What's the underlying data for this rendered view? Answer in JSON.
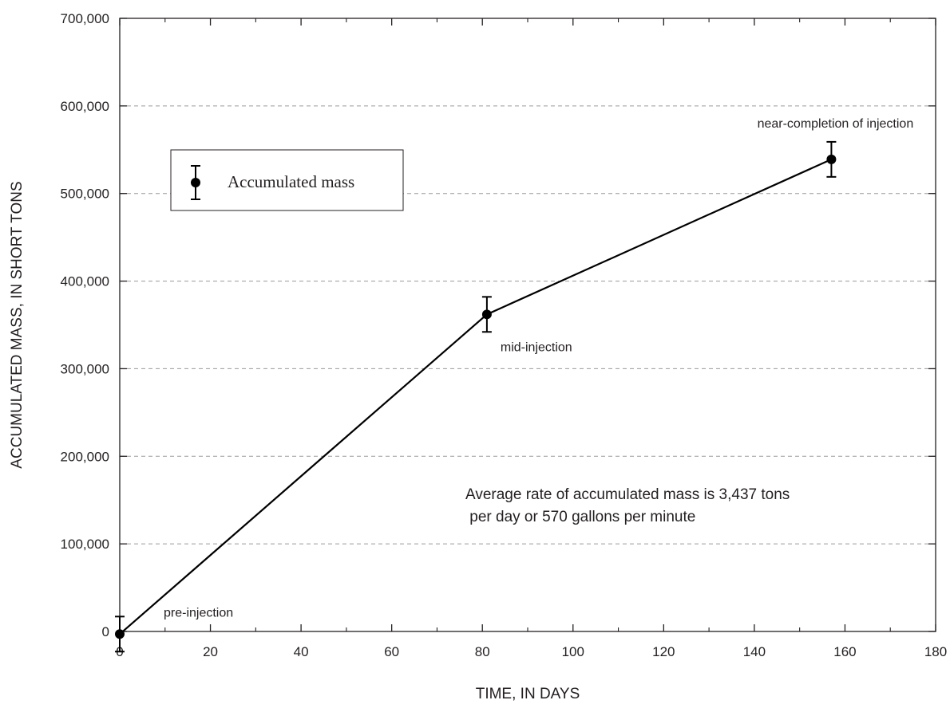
{
  "chart_data": {
    "type": "line",
    "xlabel": "TIME, IN DAYS",
    "ylabel": "ACCUMULATED MASS, IN SHORT TONS",
    "xlim": [
      0,
      180
    ],
    "ylim": [
      0,
      700000
    ],
    "x_ticks": [
      0,
      20,
      40,
      60,
      80,
      100,
      120,
      140,
      160,
      180
    ],
    "x_tick_labels": [
      "0",
      "20",
      "40",
      "60",
      "80",
      "100",
      "120",
      "140",
      "160",
      "180"
    ],
    "y_ticks": [
      0,
      100000,
      200000,
      300000,
      400000,
      500000,
      600000,
      700000
    ],
    "y_tick_labels": [
      "0",
      "100,000",
      "200,000",
      "300,000",
      "400,000",
      "500,000",
      "600,000",
      "700,000"
    ],
    "grid": "horizontal dashed",
    "series": [
      {
        "name": "Accumulated mass",
        "color": "#000000",
        "x": [
          0,
          81,
          157
        ],
        "y": [
          -3000,
          362000,
          539000
        ],
        "error": [
          20000,
          20000,
          20000
        ]
      }
    ],
    "point_labels": [
      "pre-injection",
      "mid-injection",
      "near-completion of injection"
    ],
    "legend": {
      "placement": "upper-left",
      "label": "Accumulated mass"
    },
    "annotation_lines": [
      "Average rate of accumulated mass is 3,437 tons",
      " per day or 570 gallons per minute"
    ]
  }
}
